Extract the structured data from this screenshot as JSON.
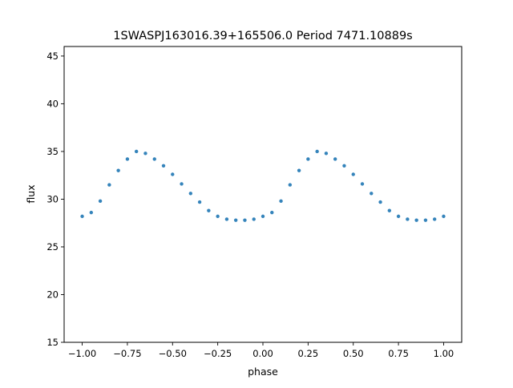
{
  "chart_data": {
    "type": "scatter",
    "title": "1SWASPJ163016.39+165506.0 Period 7471.10889s",
    "xlabel": "phase",
    "ylabel": "flux",
    "xlim": [
      -1.1,
      1.1
    ],
    "ylim": [
      15,
      46
    ],
    "xticks": [
      -1.0,
      -0.75,
      -0.5,
      -0.25,
      0.0,
      0.25,
      0.5,
      0.75,
      1.0
    ],
    "xtick_labels": [
      "−1.00",
      "−0.75",
      "−0.50",
      "−0.25",
      "0.00",
      "0.25",
      "0.50",
      "0.75",
      "1.00"
    ],
    "yticks": [
      15,
      20,
      25,
      30,
      35,
      40,
      45
    ],
    "ytick_labels": [
      "15",
      "20",
      "25",
      "30",
      "35",
      "40",
      "45"
    ],
    "grid": false,
    "point_color": "#1f77b4",
    "series": [
      {
        "x": [
          -1.0,
          -0.95,
          -0.9,
          -0.85,
          -0.8,
          -0.75,
          -0.7,
          -0.65,
          -0.6,
          -0.55,
          -0.5,
          -0.45,
          -0.4,
          -0.35,
          -0.3,
          -0.25,
          -0.2,
          -0.15,
          -0.1,
          -0.05,
          0.0,
          0.05,
          0.1,
          0.15,
          0.2,
          0.25,
          0.3,
          0.35,
          0.4,
          0.45,
          0.5,
          0.55,
          0.6,
          0.65,
          0.7,
          0.75,
          0.8,
          0.85,
          0.9,
          0.95,
          1.0
        ],
        "y": [
          28.2,
          28.6,
          29.8,
          31.5,
          33.0,
          34.2,
          35.0,
          34.8,
          34.2,
          33.5,
          32.6,
          31.6,
          30.6,
          29.7,
          28.8,
          28.2,
          27.9,
          27.8,
          27.8,
          27.9,
          28.2,
          28.6,
          29.8,
          31.5,
          33.0,
          34.2,
          35.0,
          34.8,
          34.2,
          33.5,
          32.6,
          31.6,
          30.6,
          29.7,
          28.8,
          28.2,
          27.9,
          27.8,
          27.8,
          27.9,
          28.2
        ]
      }
    ]
  }
}
